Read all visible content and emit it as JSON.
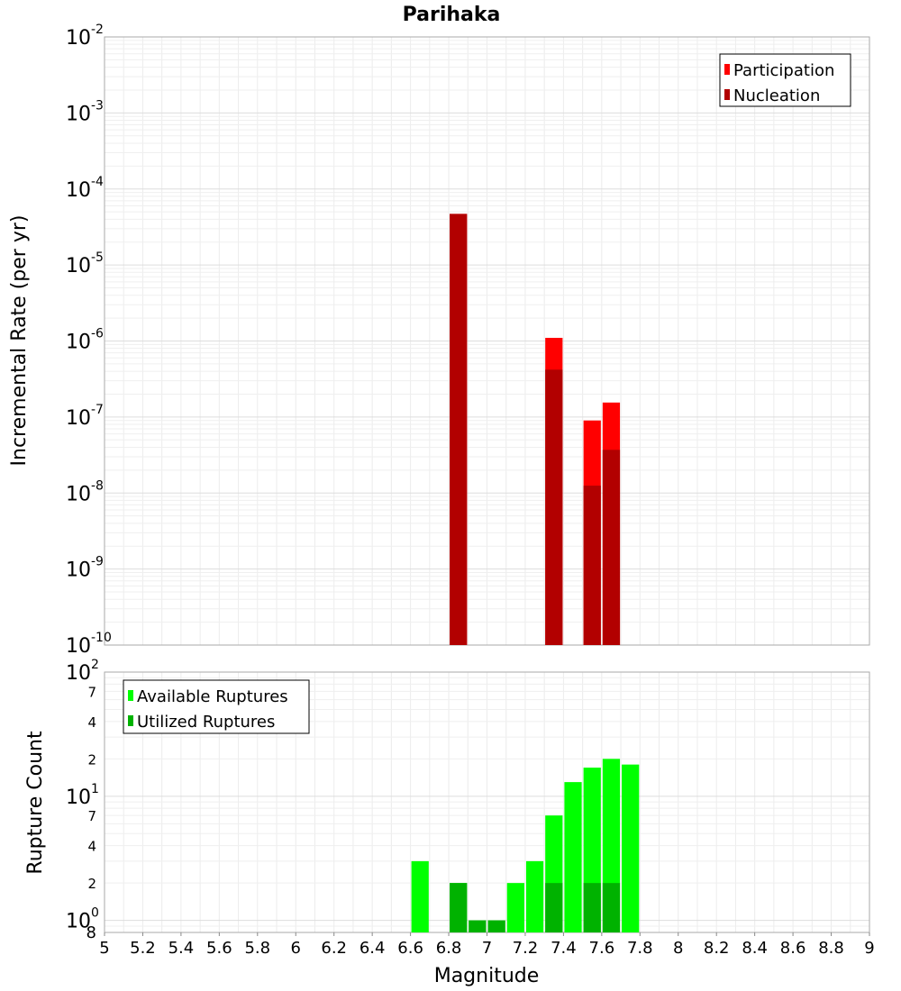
{
  "chart_data": [
    {
      "type": "bar",
      "title": "Parihaka",
      "ylabel": "Incremental Rate (per yr)",
      "yscale": "log",
      "ylim": [
        1e-10,
        0.01
      ],
      "xlim": [
        5,
        9
      ],
      "y_ticks": [
        {
          "base": "10",
          "exp": "-10"
        },
        {
          "base": "10",
          "exp": "-9"
        },
        {
          "base": "10",
          "exp": "-8"
        },
        {
          "base": "10",
          "exp": "-7"
        },
        {
          "base": "10",
          "exp": "-6"
        },
        {
          "base": "10",
          "exp": "-5"
        },
        {
          "base": "10",
          "exp": "-4"
        },
        {
          "base": "10",
          "exp": "-3"
        },
        {
          "base": "10",
          "exp": "-2"
        }
      ],
      "legend_position": "top-right",
      "series": [
        {
          "name": "Participation",
          "color": "#ff0000",
          "x": [
            6.85,
            7.35,
            7.55,
            7.65
          ],
          "values": [
            4.7e-05,
            1.1e-06,
            9e-08,
            1.55e-07
          ]
        },
        {
          "name": "Nucleation",
          "color": "#b20000",
          "x": [
            6.85,
            7.35,
            7.55,
            7.65
          ],
          "values": [
            4.7e-05,
            4.2e-07,
            1.25e-08,
            3.7e-08
          ]
        }
      ]
    },
    {
      "type": "bar",
      "ylabel": "Rupture Count",
      "xlabel": "Magnitude",
      "yscale": "log",
      "ylim": [
        0.8,
        100
      ],
      "xlim": [
        5,
        9
      ],
      "x_ticks": [
        "5",
        "5.2",
        "5.4",
        "5.6",
        "5.8",
        "6",
        "6.2",
        "6.4",
        "6.6",
        "6.8",
        "7",
        "7.2",
        "7.4",
        "7.6",
        "7.8",
        "8",
        "8.2",
        "8.4",
        "8.6",
        "8.8",
        "9"
      ],
      "y_major_ticks": [
        {
          "base": "10",
          "exp": "0",
          "value": 1
        },
        {
          "base": "10",
          "exp": "1",
          "value": 10
        },
        {
          "base": "10",
          "exp": "2",
          "value": 100
        }
      ],
      "y_minor_ticks": [
        {
          "label": "8",
          "value": 0.8
        },
        {
          "label": "2",
          "value": 2
        },
        {
          "label": "4",
          "value": 4
        },
        {
          "label": "7",
          "value": 7
        },
        {
          "label": "2",
          "value": 20
        },
        {
          "label": "4",
          "value": 40
        },
        {
          "label": "7",
          "value": 70
        }
      ],
      "legend_position": "top-left",
      "series": [
        {
          "name": "Available Ruptures",
          "color": "#00ff00",
          "x": [
            6.65,
            6.75,
            6.85,
            6.95,
            7.05,
            7.15,
            7.25,
            7.35,
            7.45,
            7.55,
            7.65,
            7.75
          ],
          "values": [
            3,
            0,
            2,
            1,
            1,
            2,
            3,
            7,
            13,
            17,
            20,
            18
          ]
        },
        {
          "name": "Utilized Ruptures",
          "color": "#00b200",
          "x": [
            6.85,
            6.95,
            7.05,
            7.35,
            7.55,
            7.65
          ],
          "values": [
            2,
            1,
            1,
            2,
            2,
            2
          ]
        }
      ]
    }
  ]
}
